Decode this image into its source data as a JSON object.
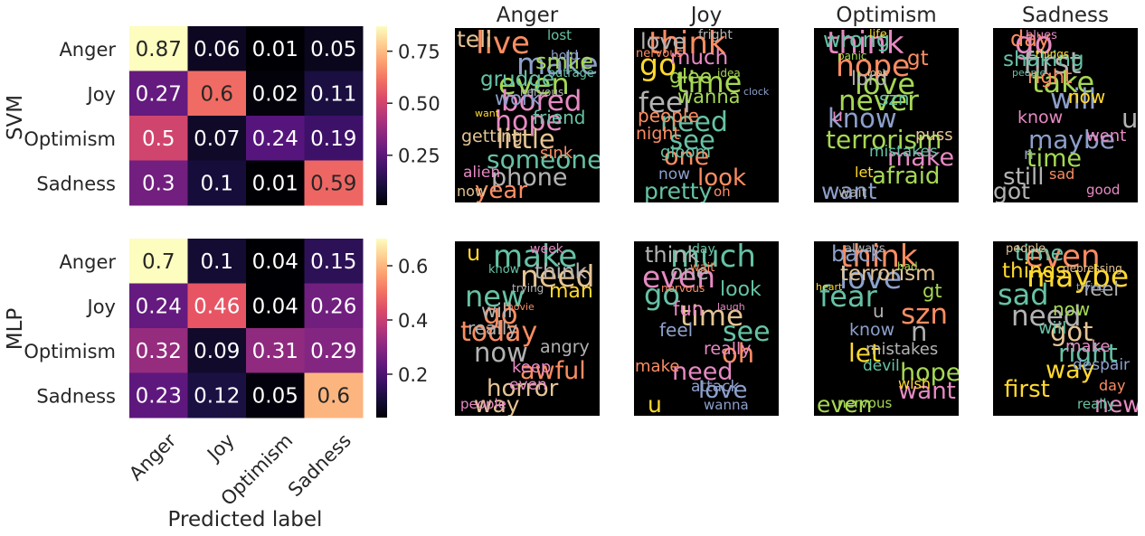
{
  "chart_data": [
    {
      "type": "heatmap",
      "ylabel": "SVM",
      "rows": [
        "Anger",
        "Joy",
        "Optimism",
        "Sadness"
      ],
      "cols": [
        "Anger",
        "Joy",
        "Optimism",
        "Sadness"
      ],
      "values": [
        [
          0.87,
          0.06,
          0.01,
          0.05
        ],
        [
          0.27,
          0.6,
          0.02,
          0.11
        ],
        [
          0.5,
          0.07,
          0.24,
          0.19
        ],
        [
          0.3,
          0.1,
          0.01,
          0.59
        ]
      ],
      "colorbar_ticks": [
        "0.75",
        "0.50",
        "0.25"
      ],
      "colorbar_tick_values": [
        0.75,
        0.5,
        0.25
      ],
      "colorbar_range": [
        0.01,
        0.87
      ],
      "colormap": "magma"
    },
    {
      "type": "heatmap",
      "ylabel": "MLP",
      "xlabel": "Predicted label",
      "rows": [
        "Anger",
        "Joy",
        "Optimism",
        "Sadness"
      ],
      "cols": [
        "Anger",
        "Joy",
        "Optimism",
        "Sadness"
      ],
      "values": [
        [
          0.7,
          0.1,
          0.04,
          0.15
        ],
        [
          0.24,
          0.46,
          0.04,
          0.26
        ],
        [
          0.32,
          0.09,
          0.31,
          0.29
        ],
        [
          0.23,
          0.12,
          0.05,
          0.6
        ]
      ],
      "colorbar_ticks": [
        "0.6",
        "0.4",
        "0.2"
      ],
      "colorbar_tick_values": [
        0.6,
        0.4,
        0.2
      ],
      "colorbar_range": [
        0.04,
        0.7
      ],
      "colormap": "magma"
    }
  ],
  "wordclouds": {
    "column_titles": [
      "Anger",
      "Joy",
      "Optimism",
      "Sadness"
    ],
    "rows": [
      {
        "model": "SVM",
        "clouds": [
          [
            "live",
            "make",
            "even",
            "bored",
            "hope",
            "little",
            "someone",
            "phone",
            "year",
            "tell",
            "smile",
            "grudge",
            "work",
            "friend",
            "getting",
            "sink",
            "alien",
            "now",
            "lost",
            "hold",
            "outrage",
            "nervous",
            "want"
          ],
          [
            "think",
            "go",
            "time",
            "feel",
            "need",
            "see",
            "one",
            "look",
            "pretty",
            "love",
            "much",
            "glee",
            "wanna",
            "people",
            "night",
            "gloom",
            "now",
            "oh",
            "fright",
            "nervous",
            "idea",
            "clock"
          ],
          [
            "think",
            "hope",
            "love",
            "never",
            "know",
            "terrorism",
            "make",
            "afraid",
            "want",
            "wrong",
            "gt",
            "lord",
            "szn",
            "u",
            "puss",
            "mistakes",
            "let",
            "wait",
            "life",
            "panic",
            "look"
          ],
          [
            "go",
            "first",
            "take",
            "will",
            "u",
            "maybe",
            "time",
            "still",
            "got",
            "day",
            "shaking",
            "right",
            "now",
            "know",
            "went",
            "n",
            "sad",
            "good",
            "blues",
            "things",
            "people"
          ]
        ]
      },
      {
        "model": "MLP",
        "clouds": [
          [
            "make",
            "need",
            "new",
            "go",
            "today",
            "now",
            "awful",
            "horror",
            "way",
            "u",
            "think",
            "man",
            "will",
            "really",
            "angry",
            "keep",
            "even",
            "people",
            "week",
            "know",
            "trying",
            "movie"
          ],
          [
            "much",
            "even",
            "go",
            "time",
            "see",
            "oh",
            "need",
            "love",
            "u",
            "think",
            "one",
            "look",
            "fun",
            "feel",
            "really",
            "make",
            "attack",
            "wanna",
            "day",
            "wait",
            "nervous",
            "laugh"
          ],
          [
            "think",
            "love",
            "fear",
            "szn",
            "n",
            "let",
            "hope",
            "want",
            "even",
            "back",
            "terrorism",
            "gt",
            "u",
            "know",
            "mistakes",
            "devil",
            "wish",
            "nervous",
            "always",
            "bad",
            "heart"
          ],
          [
            "even",
            "maybe",
            "sad",
            "need",
            "got",
            "right",
            "way",
            "first",
            "new",
            "time",
            "things",
            "feel",
            "now",
            "will",
            "make",
            "despair",
            "day",
            "really",
            "people",
            "depressing",
            "trying"
          ]
        ]
      }
    ]
  }
}
